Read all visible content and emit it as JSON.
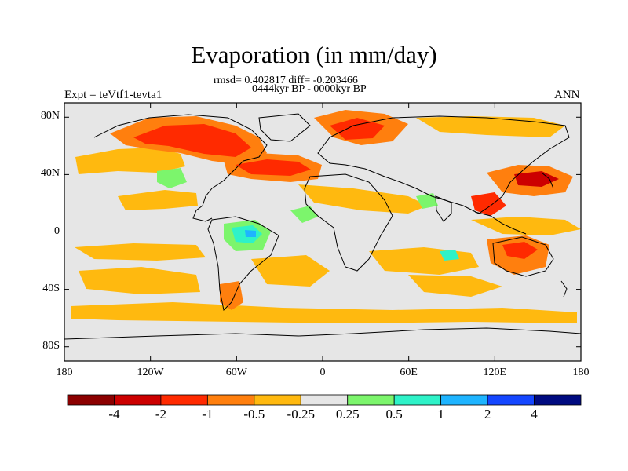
{
  "title": "Evaporation (in mm/day)",
  "stats_line": "rmsd= 0.402817 diff= -0.203466",
  "period_line": "0444kyr BP - 0000kyr BP",
  "experiment_label": "Expt = teVtf1-tevta1",
  "season_label": "ANN",
  "lat_ticks": [
    {
      "label": "80N",
      "value": 80
    },
    {
      "label": "40N",
      "value": 40
    },
    {
      "label": "0",
      "value": 0
    },
    {
      "label": "40S",
      "value": -40
    },
    {
      "label": "80S",
      "value": -80
    }
  ],
  "lon_ticks": [
    {
      "label": "180",
      "value": -180
    },
    {
      "label": "120W",
      "value": -120
    },
    {
      "label": "60W",
      "value": -60
    },
    {
      "label": "0",
      "value": 0
    },
    {
      "label": "60E",
      "value": 60
    },
    {
      "label": "120E",
      "value": 120
    },
    {
      "label": "180",
      "value": 180
    }
  ],
  "lat_range": [
    -90,
    90
  ],
  "lon_range": [
    -180,
    180
  ],
  "colorbar": {
    "colors": [
      "#8b0000",
      "#cc0000",
      "#ff2a00",
      "#ff7f0e",
      "#ffb90f",
      "#e6e6e6",
      "#7cf56c",
      "#2ef2c8",
      "#1eb4ff",
      "#1446ff",
      "#000a80"
    ],
    "labels": [
      "-4",
      "-2",
      "-1",
      "-0.5",
      "-0.25",
      "0.25",
      "0.5",
      "1",
      "2",
      "4"
    ]
  },
  "colors": {
    "background_field": "#e6e6e6",
    "coastline": "#000000"
  }
}
